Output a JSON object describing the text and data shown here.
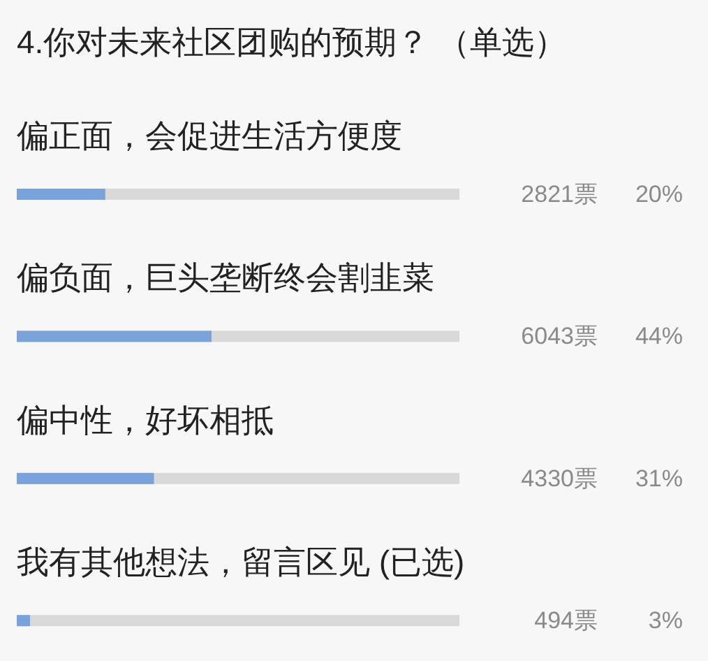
{
  "chart_data": {
    "type": "bar",
    "orientation": "horizontal",
    "title": "4.你对未来社区团购的预期？ （单选）",
    "categories": [
      "偏正面，会促进生活方便度",
      "偏负面，巨头垄断终会割韭菜",
      "偏中性，好坏相抵",
      "我有其他想法，留言区见 (已选)"
    ],
    "values": [
      20,
      44,
      31,
      3
    ],
    "value_labels": [
      "20%",
      "44%",
      "31%",
      "3%"
    ],
    "annotations": [
      "2821票",
      "6043票",
      "4330票",
      "494票"
    ],
    "color": "#7ba3db",
    "xlim": [
      0,
      100
    ]
  }
}
